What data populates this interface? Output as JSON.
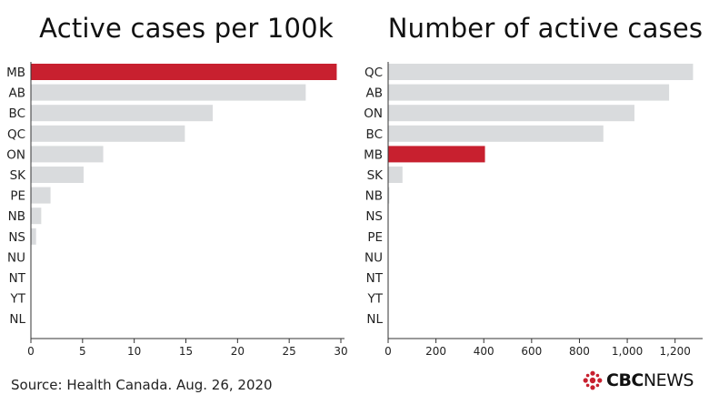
{
  "colors": {
    "highlight": "#c8202f",
    "bar": "#d9dbdd",
    "axis": "#333333"
  },
  "logo": {
    "icon": "cbc-gem-icon",
    "brand": "CBC",
    "suffix": "NEWS"
  },
  "source": "Source: Health Canada. Aug. 26, 2020",
  "chart_data": [
    {
      "type": "bar",
      "orientation": "horizontal",
      "title": "Active cases per 100k",
      "categories": [
        "MB",
        "AB",
        "BC",
        "QC",
        "ON",
        "SK",
        "PE",
        "NB",
        "NS",
        "NU",
        "NT",
        "YT",
        "NL"
      ],
      "values": [
        29.6,
        26.6,
        17.6,
        14.9,
        7.0,
        5.1,
        1.9,
        1.0,
        0.5,
        0,
        0,
        0,
        0
      ],
      "highlight": "MB",
      "xlim": [
        0,
        30
      ],
      "xticks": [
        0,
        5,
        10,
        15,
        20,
        25,
        30
      ],
      "xtick_labels": [
        "0",
        "5",
        "10",
        "15",
        "20",
        "25",
        "30"
      ],
      "grid": false
    },
    {
      "type": "bar",
      "orientation": "horizontal",
      "title": "Number of active cases",
      "categories": [
        "QC",
        "AB",
        "ON",
        "BC",
        "MB",
        "SK",
        "NB",
        "NS",
        "PE",
        "NU",
        "NT",
        "YT",
        "NL"
      ],
      "values": [
        1275,
        1175,
        1030,
        900,
        405,
        60,
        5,
        0,
        0,
        0,
        0,
        0,
        0
      ],
      "highlight": "MB",
      "xlim": [
        0,
        1300
      ],
      "xticks": [
        0,
        200,
        400,
        600,
        800,
        1000,
        1200
      ],
      "xtick_labels": [
        "0",
        "200",
        "400",
        "600",
        "800",
        "1,000",
        "1,200"
      ],
      "grid": false
    }
  ]
}
